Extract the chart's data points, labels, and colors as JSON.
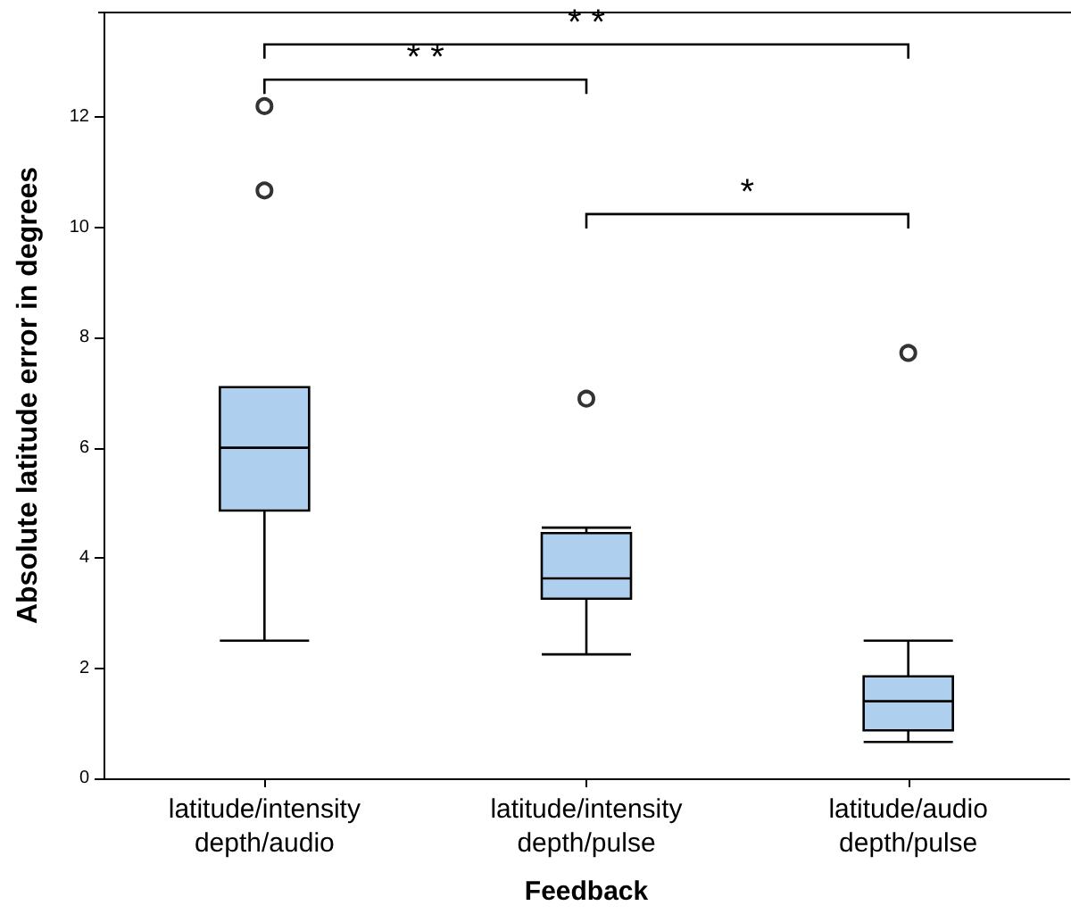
{
  "chart_data": {
    "type": "box",
    "xlabel": "Feedback",
    "ylabel": "Absolute latitude error in degrees",
    "categories": [
      "latitude/intensity\ndepth/audio",
      "latitude/intensity\ndepth/pulse",
      "latitude/audio\ndepth/pulse"
    ],
    "color": "#aed0ee",
    "boxes": [
      {
        "low": 2.5,
        "q1": 4.86,
        "median": 6.0,
        "q3": 7.1,
        "high": 7.1,
        "outliers": [
          10.67,
          12.2
        ]
      },
      {
        "low": 2.25,
        "q1": 3.26,
        "median": 3.63,
        "q3": 4.45,
        "high": 4.55,
        "outliers": [
          6.89
        ]
      },
      {
        "low": 0.66,
        "q1": 0.87,
        "median": 1.4,
        "q3": 1.85,
        "high": 2.5,
        "outliers": [
          7.72
        ]
      }
    ],
    "ylim": [
      0,
      13.9
    ],
    "yticks": [
      0,
      2,
      4,
      6,
      8,
      10,
      12
    ],
    "grid": false,
    "marker": "circle",
    "annotations": [
      "* *",
      "* *",
      "*"
    ]
  }
}
